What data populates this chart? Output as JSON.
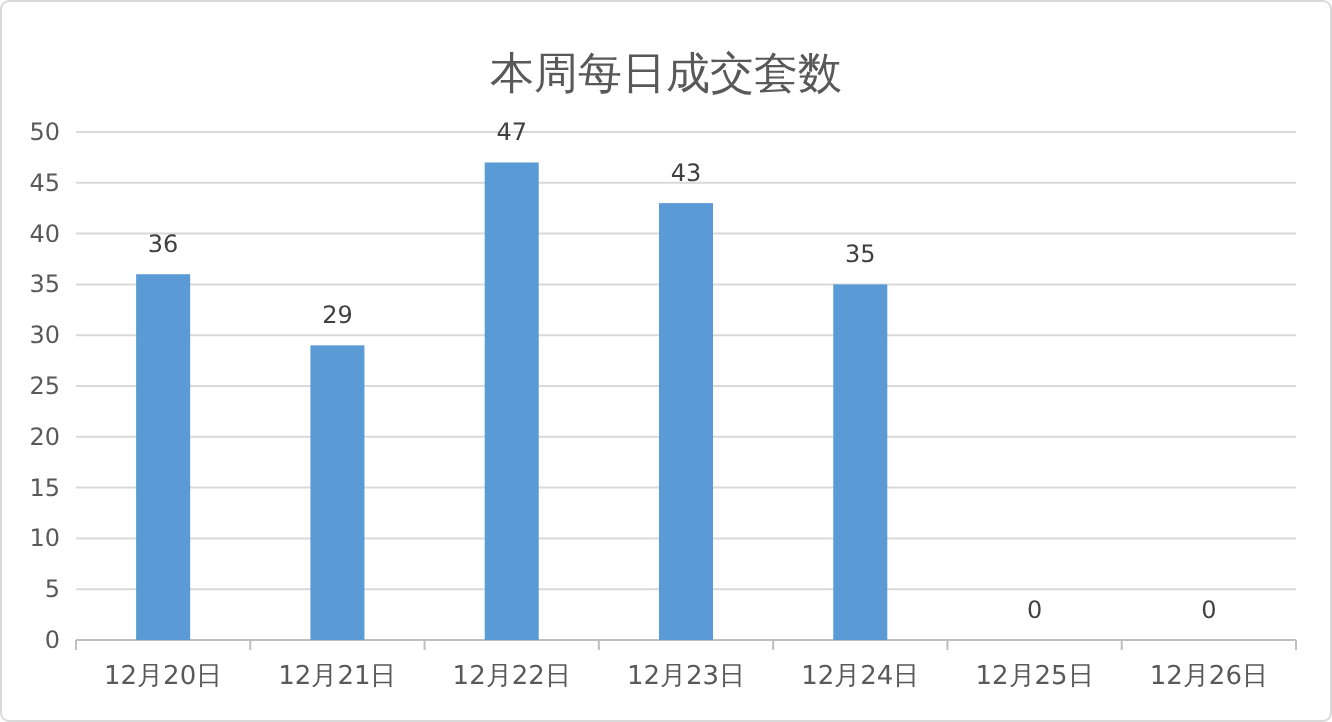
{
  "chart_data": {
    "type": "bar",
    "title": "本周每日成交套数",
    "categories": [
      "12月20日",
      "12月21日",
      "12月22日",
      "12月23日",
      "12月24日",
      "12月25日",
      "12月26日"
    ],
    "values": [
      36,
      29,
      47,
      43,
      35,
      0,
      0
    ],
    "color": "#5b9bd5",
    "ylim": [
      0,
      50
    ],
    "yticks": [
      0,
      5,
      10,
      15,
      20,
      25,
      30,
      35,
      40,
      45,
      50
    ],
    "grid": "y",
    "data_labels": true
  }
}
